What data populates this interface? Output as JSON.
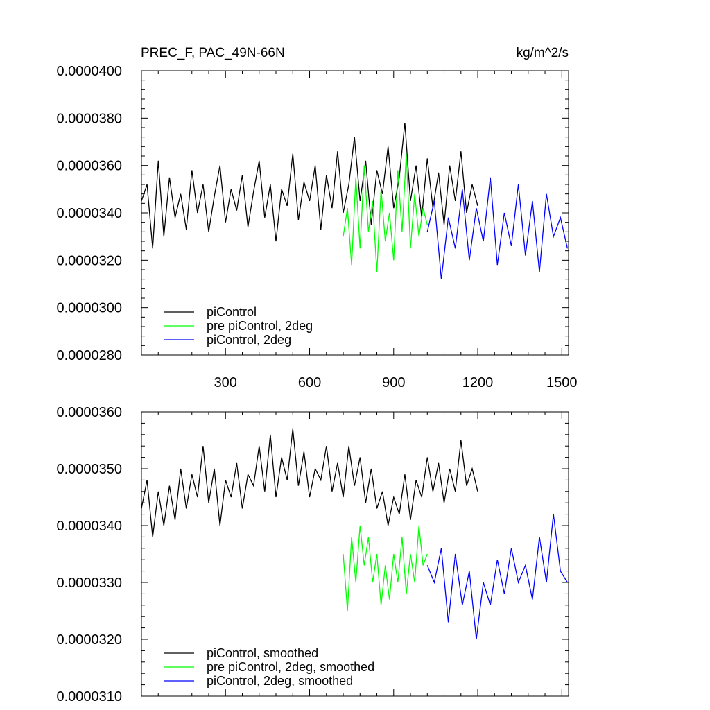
{
  "chart_data": [
    {
      "type": "line",
      "title": "PREC_F, PAC_49N-66N",
      "units": "kg/m^2/s",
      "xlim": [
        0,
        1524
      ],
      "ylim": [
        2.8e-05,
        4e-05
      ],
      "xticks": [
        300,
        600,
        900,
        1200,
        1500
      ],
      "xtick_labels": [
        "300",
        "600",
        "900",
        "1200",
        "1500"
      ],
      "yticks": [
        2.8e-05,
        3e-05,
        3.2e-05,
        3.4e-05,
        3.6e-05,
        3.8e-05,
        4e-05
      ],
      "ytick_labels": [
        "0.0000280",
        "0.0000300",
        "0.0000320",
        "0.0000340",
        "0.0000360",
        "0.0000380",
        "0.0000400"
      ],
      "legend_position": "bottom-left",
      "series": [
        {
          "name": "piControl",
          "color": "#000000",
          "x": [
            0,
            20,
            40,
            60,
            80,
            100,
            120,
            140,
            160,
            180,
            200,
            220,
            240,
            260,
            280,
            300,
            320,
            340,
            360,
            380,
            400,
            420,
            440,
            460,
            480,
            500,
            520,
            540,
            560,
            580,
            600,
            620,
            640,
            660,
            680,
            700,
            720,
            740,
            760,
            780,
            800,
            820,
            840,
            860,
            880,
            900,
            920,
            940,
            960,
            980,
            1000,
            1020,
            1040,
            1060,
            1080,
            1100,
            1120,
            1140,
            1160,
            1180,
            1200
          ],
          "y": [
            3.45e-05,
            3.52e-05,
            3.25e-05,
            3.62e-05,
            3.3e-05,
            3.55e-05,
            3.38e-05,
            3.48e-05,
            3.33e-05,
            3.58e-05,
            3.4e-05,
            3.52e-05,
            3.32e-05,
            3.47e-05,
            3.6e-05,
            3.36e-05,
            3.5e-05,
            3.41e-05,
            3.56e-05,
            3.34e-05,
            3.49e-05,
            3.62e-05,
            3.38e-05,
            3.52e-05,
            3.28e-05,
            3.5e-05,
            3.43e-05,
            3.65e-05,
            3.37e-05,
            3.53e-05,
            3.45e-05,
            3.6e-05,
            3.33e-05,
            3.56e-05,
            3.42e-05,
            3.66e-05,
            3.4e-05,
            3.52e-05,
            3.72e-05,
            3.45e-05,
            3.62e-05,
            3.35e-05,
            3.58e-05,
            3.48e-05,
            3.68e-05,
            3.42e-05,
            3.55e-05,
            3.78e-05,
            3.45e-05,
            3.6e-05,
            3.38e-05,
            3.63e-05,
            3.42e-05,
            3.57e-05,
            3.35e-05,
            3.6e-05,
            3.45e-05,
            3.66e-05,
            3.4e-05,
            3.52e-05,
            3.43e-05
          ]
        },
        {
          "name": "pre piControl, 2deg",
          "color": "#00ff00",
          "x": [
            720,
            735,
            750,
            765,
            780,
            795,
            810,
            825,
            840,
            855,
            870,
            885,
            900,
            915,
            930,
            945,
            960,
            975,
            990,
            1005,
            1020
          ],
          "y": [
            3.3e-05,
            3.42e-05,
            3.18e-05,
            3.55e-05,
            3.25e-05,
            3.6e-05,
            3.32e-05,
            3.45e-05,
            3.15e-05,
            3.5e-05,
            3.28e-05,
            3.4e-05,
            3.2e-05,
            3.58e-05,
            3.32e-05,
            3.65e-05,
            3.25e-05,
            3.48e-05,
            3.3e-05,
            3.42e-05,
            3.35e-05
          ]
        },
        {
          "name": "piControl, 2deg",
          "color": "#0000ff",
          "x": [
            1020,
            1045,
            1070,
            1095,
            1120,
            1145,
            1170,
            1195,
            1220,
            1245,
            1270,
            1295,
            1320,
            1345,
            1370,
            1395,
            1420,
            1445,
            1470,
            1495,
            1520
          ],
          "y": [
            3.32e-05,
            3.45e-05,
            3.12e-05,
            3.38e-05,
            3.25e-05,
            3.5e-05,
            3.2e-05,
            3.42e-05,
            3.28e-05,
            3.55e-05,
            3.18e-05,
            3.4e-05,
            3.26e-05,
            3.52e-05,
            3.22e-05,
            3.45e-05,
            3.15e-05,
            3.48e-05,
            3.3e-05,
            3.38e-05,
            3.25e-05
          ]
        }
      ]
    },
    {
      "type": "line",
      "xlim": [
        0,
        1524
      ],
      "ylim": [
        3.1e-05,
        3.6e-05
      ],
      "xticks": [
        300,
        600,
        900,
        1200,
        1500
      ],
      "yticks": [
        3.1e-05,
        3.2e-05,
        3.3e-05,
        3.4e-05,
        3.5e-05,
        3.6e-05
      ],
      "ytick_labels": [
        "0.0000310",
        "0.0000320",
        "0.0000330",
        "0.0000340",
        "0.0000350",
        "0.0000360"
      ],
      "legend_position": "bottom-left",
      "series": [
        {
          "name": "piControl, smoothed",
          "color": "#000000",
          "x": [
            0,
            20,
            40,
            60,
            80,
            100,
            120,
            140,
            160,
            180,
            200,
            220,
            240,
            260,
            280,
            300,
            320,
            340,
            360,
            380,
            400,
            420,
            440,
            460,
            480,
            500,
            520,
            540,
            560,
            580,
            600,
            620,
            640,
            660,
            680,
            700,
            720,
            740,
            760,
            780,
            800,
            820,
            840,
            860,
            880,
            900,
            920,
            940,
            960,
            980,
            1000,
            1020,
            1040,
            1060,
            1080,
            1100,
            1120,
            1140,
            1160,
            1180,
            1200
          ],
          "y": [
            3.43e-05,
            3.48e-05,
            3.38e-05,
            3.46e-05,
            3.4e-05,
            3.47e-05,
            3.41e-05,
            3.5e-05,
            3.43e-05,
            3.49e-05,
            3.45e-05,
            3.54e-05,
            3.44e-05,
            3.5e-05,
            3.4e-05,
            3.48e-05,
            3.45e-05,
            3.51e-05,
            3.43e-05,
            3.49e-05,
            3.47e-05,
            3.54e-05,
            3.46e-05,
            3.56e-05,
            3.45e-05,
            3.52e-05,
            3.48e-05,
            3.57e-05,
            3.47e-05,
            3.53e-05,
            3.45e-05,
            3.5e-05,
            3.48e-05,
            3.54e-05,
            3.46e-05,
            3.51e-05,
            3.45e-05,
            3.54e-05,
            3.47e-05,
            3.52e-05,
            3.44e-05,
            3.5e-05,
            3.43e-05,
            3.46e-05,
            3.4e-05,
            3.45e-05,
            3.42e-05,
            3.49e-05,
            3.41e-05,
            3.48e-05,
            3.45e-05,
            3.52e-05,
            3.46e-05,
            3.51e-05,
            3.44e-05,
            3.5e-05,
            3.46e-05,
            3.55e-05,
            3.47e-05,
            3.5e-05,
            3.46e-05
          ]
        },
        {
          "name": "pre piControl, 2deg, smoothed",
          "color": "#00ff00",
          "x": [
            720,
            735,
            750,
            765,
            780,
            795,
            810,
            825,
            840,
            855,
            870,
            885,
            900,
            915,
            930,
            945,
            960,
            975,
            990,
            1005,
            1020
          ],
          "y": [
            3.35e-05,
            3.25e-05,
            3.38e-05,
            3.3e-05,
            3.4e-05,
            3.33e-05,
            3.38e-05,
            3.3e-05,
            3.35e-05,
            3.26e-05,
            3.33e-05,
            3.27e-05,
            3.35e-05,
            3.3e-05,
            3.38e-05,
            3.28e-05,
            3.35e-05,
            3.3e-05,
            3.4e-05,
            3.33e-05,
            3.35e-05
          ]
        },
        {
          "name": "piControl, 2deg, smoothed",
          "color": "#0000ff",
          "x": [
            1020,
            1045,
            1070,
            1095,
            1120,
            1145,
            1170,
            1195,
            1220,
            1245,
            1270,
            1295,
            1320,
            1345,
            1370,
            1395,
            1420,
            1445,
            1470,
            1495,
            1520
          ],
          "y": [
            3.33e-05,
            3.3e-05,
            3.36e-05,
            3.23e-05,
            3.35e-05,
            3.26e-05,
            3.32e-05,
            3.2e-05,
            3.3e-05,
            3.26e-05,
            3.34e-05,
            3.28e-05,
            3.36e-05,
            3.3e-05,
            3.33e-05,
            3.27e-05,
            3.38e-05,
            3.3e-05,
            3.42e-05,
            3.32e-05,
            3.3e-05
          ]
        }
      ]
    }
  ]
}
